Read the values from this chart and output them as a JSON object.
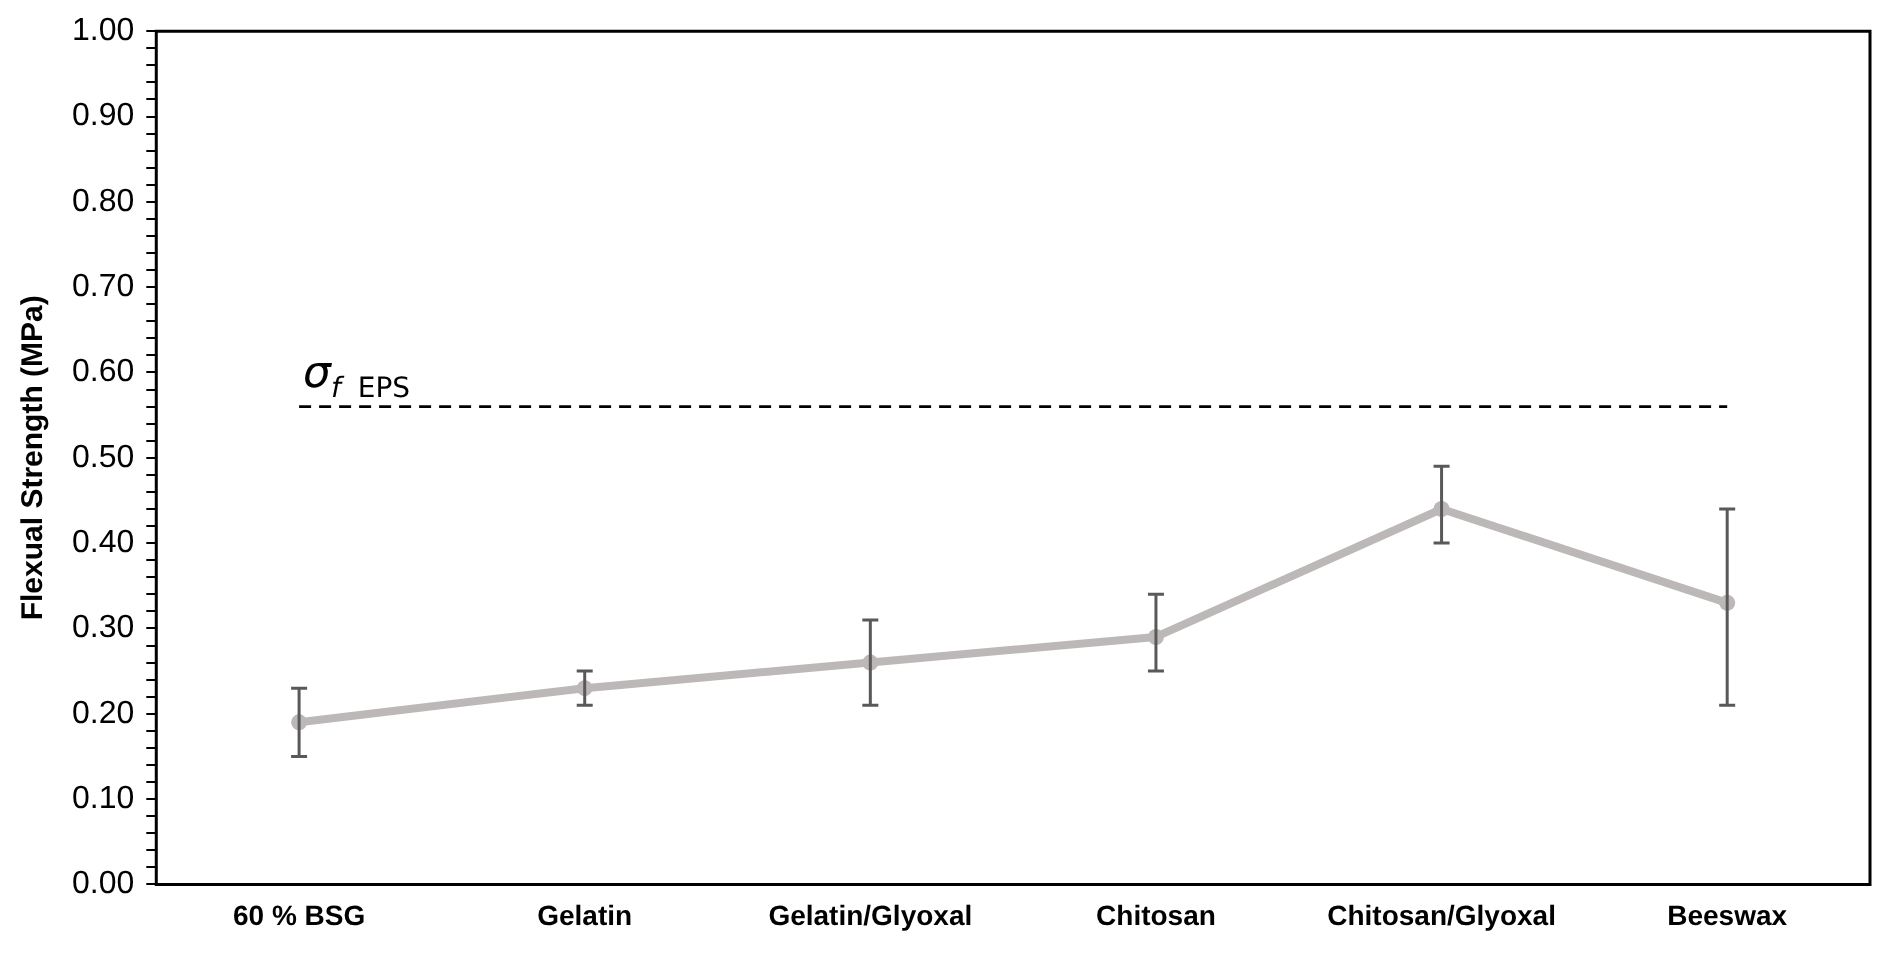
{
  "chart_data": {
    "type": "line",
    "ylabel": "Flexual Strength (MPa)",
    "categories": [
      "60 % BSG",
      "Gelatin",
      "Gelatin/Glyoxal",
      "Chitosan",
      "Chitosan/Glyoxal",
      "Beeswax"
    ],
    "series": [
      {
        "color": "#bdb8b8",
        "values": [
          0.19,
          0.23,
          0.26,
          0.29,
          0.44,
          0.33
        ],
        "errors": [
          [
            0.15,
            0.23
          ],
          [
            0.21,
            0.25
          ],
          [
            0.21,
            0.31
          ],
          [
            0.25,
            0.34
          ],
          [
            0.4,
            0.49
          ],
          [
            0.21,
            0.44
          ]
        ]
      }
    ],
    "ylim": [
      0,
      1
    ],
    "yticks": [
      {
        "value": 0,
        "label": "0.00"
      },
      {
        "value": 0.02,
        "label": null
      },
      {
        "value": 0.04,
        "label": null
      },
      {
        "value": 0.06,
        "label": null
      },
      {
        "value": 0.08,
        "label": null
      },
      {
        "value": 0.1,
        "label": "0.10"
      },
      {
        "value": 0.12,
        "label": null
      },
      {
        "value": 0.14,
        "label": null
      },
      {
        "value": 0.16,
        "label": null
      },
      {
        "value": 0.18,
        "label": null
      },
      {
        "value": 0.2,
        "label": "0.20"
      },
      {
        "value": 0.22,
        "label": null
      },
      {
        "value": 0.24,
        "label": null
      },
      {
        "value": 0.26,
        "label": null
      },
      {
        "value": 0.28,
        "label": null
      },
      {
        "value": 0.3,
        "label": "0.30"
      },
      {
        "value": 0.32,
        "label": null
      },
      {
        "value": 0.34,
        "label": null
      },
      {
        "value": 0.36,
        "label": null
      },
      {
        "value": 0.38,
        "label": null
      },
      {
        "value": 0.4,
        "label": "0.40"
      },
      {
        "value": 0.42,
        "label": null
      },
      {
        "value": 0.44,
        "label": null
      },
      {
        "value": 0.46,
        "label": null
      },
      {
        "value": 0.48,
        "label": null
      },
      {
        "value": 0.5,
        "label": "0.50"
      },
      {
        "value": 0.52,
        "label": null
      },
      {
        "value": 0.54,
        "label": null
      },
      {
        "value": 0.56,
        "label": null
      },
      {
        "value": 0.58,
        "label": null
      },
      {
        "value": 0.6,
        "label": "0.60"
      },
      {
        "value": 0.62,
        "label": null
      },
      {
        "value": 0.64,
        "label": null
      },
      {
        "value": 0.66,
        "label": null
      },
      {
        "value": 0.68,
        "label": null
      },
      {
        "value": 0.7,
        "label": "0.70"
      },
      {
        "value": 0.72,
        "label": null
      },
      {
        "value": 0.74,
        "label": null
      },
      {
        "value": 0.76,
        "label": null
      },
      {
        "value": 0.78,
        "label": null
      },
      {
        "value": 0.8,
        "label": "0.80"
      },
      {
        "value": 0.82,
        "label": null
      },
      {
        "value": 0.84,
        "label": null
      },
      {
        "value": 0.86,
        "label": null
      },
      {
        "value": 0.88,
        "label": null
      },
      {
        "value": 0.9,
        "label": "0.90"
      },
      {
        "value": 0.92,
        "label": null
      },
      {
        "value": 0.94,
        "label": null
      },
      {
        "value": 0.96,
        "label": null
      },
      {
        "value": 0.98,
        "label": null
      },
      {
        "value": 1,
        "label": "1.00"
      }
    ],
    "ref_lines": [
      {
        "axis": "y",
        "value": 0.56,
        "label": "σ$_{f}$ EPS",
        "color": "#000000",
        "line_style": "dashed"
      }
    ],
    "grid": false,
    "legend": false,
    "marker": "circle",
    "line_style": "solid"
  }
}
